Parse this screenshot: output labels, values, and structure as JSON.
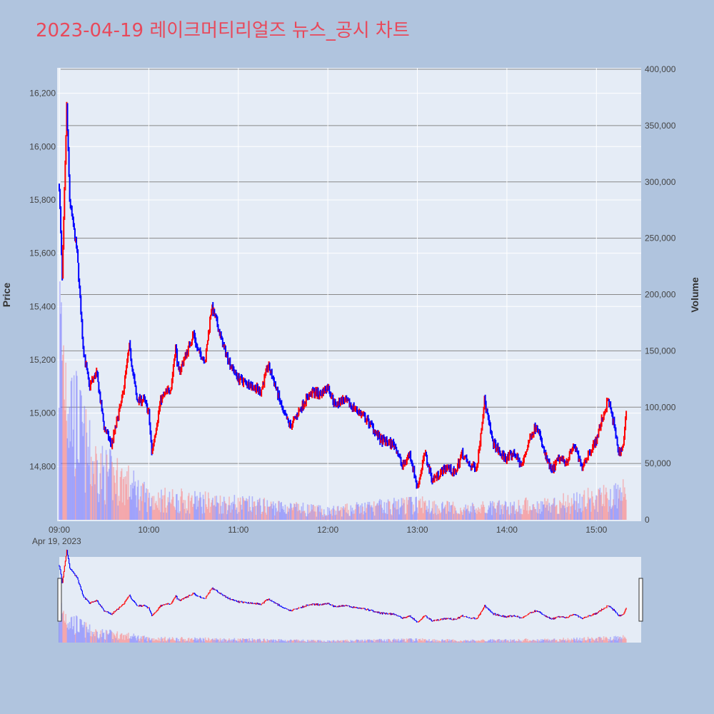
{
  "title": "2023-04-19 레이크머티리얼즈 뉴스_공시 차트",
  "colors": {
    "up": "#ff0000",
    "down": "#0000ff",
    "page_bg": "#b0c4de",
    "plot_bg": "#e5ecf6",
    "title": "#e8495b"
  },
  "chart_data": {
    "type": "candlestick",
    "xlabel": "",
    "date_label": "Apr 19, 2023",
    "x_ticks": [
      "09:00",
      "10:00",
      "11:00",
      "12:00",
      "13:00",
      "14:00",
      "15:00"
    ],
    "x_range": [
      "09:00",
      "15:30"
    ],
    "y_left": {
      "label": "Price",
      "range": [
        14600,
        16290
      ],
      "ticks": [
        "14,800",
        "15,000",
        "15,200",
        "15,400",
        "15,600",
        "15,800",
        "16,000",
        "16,200"
      ]
    },
    "y_right": {
      "label": "Volume",
      "range": [
        0,
        400000
      ],
      "ticks": [
        "0",
        "50,000",
        "100,000",
        "150,000",
        "200,000",
        "250,000",
        "300,000",
        "350,000",
        "400,000"
      ]
    },
    "price_keypoints": [
      [
        "09:00",
        15850
      ],
      [
        "09:02",
        15500
      ],
      [
        "09:05",
        16150
      ],
      [
        "09:07",
        15800
      ],
      [
        "09:12",
        15600
      ],
      [
        "09:16",
        15250
      ],
      [
        "09:20",
        15100
      ],
      [
        "09:25",
        15150
      ],
      [
        "09:30",
        14950
      ],
      [
        "09:35",
        14880
      ],
      [
        "09:42",
        15050
      ],
      [
        "09:47",
        15250
      ],
      [
        "09:52",
        15050
      ],
      [
        "09:57",
        15050
      ],
      [
        "10:00",
        15000
      ],
      [
        "10:02",
        14850
      ],
      [
        "10:08",
        15050
      ],
      [
        "10:15",
        15100
      ],
      [
        "10:18",
        15250
      ],
      [
        "10:20",
        15150
      ],
      [
        "10:27",
        15250
      ],
      [
        "10:30",
        15300
      ],
      [
        "10:33",
        15230
      ],
      [
        "10:38",
        15200
      ],
      [
        "10:42",
        15400
      ],
      [
        "10:45",
        15350
      ],
      [
        "10:50",
        15250
      ],
      [
        "10:55",
        15180
      ],
      [
        "11:00",
        15130
      ],
      [
        "11:10",
        15100
      ],
      [
        "11:15",
        15080
      ],
      [
        "11:20",
        15180
      ],
      [
        "11:25",
        15100
      ],
      [
        "11:30",
        15000
      ],
      [
        "11:35",
        14950
      ],
      [
        "11:40",
        15000
      ],
      [
        "11:45",
        15050
      ],
      [
        "11:50",
        15080
      ],
      [
        "11:55",
        15070
      ],
      [
        "12:00",
        15100
      ],
      [
        "12:05",
        15030
      ],
      [
        "12:10",
        15050
      ],
      [
        "12:20",
        15010
      ],
      [
        "12:30",
        14950
      ],
      [
        "12:35",
        14900
      ],
      [
        "12:45",
        14880
      ],
      [
        "12:50",
        14800
      ],
      [
        "12:55",
        14850
      ],
      [
        "13:00",
        14720
      ],
      [
        "13:05",
        14850
      ],
      [
        "13:10",
        14750
      ],
      [
        "13:20",
        14800
      ],
      [
        "13:25",
        14770
      ],
      [
        "13:30",
        14850
      ],
      [
        "13:35",
        14800
      ],
      [
        "13:40",
        14800
      ],
      [
        "13:45",
        15050
      ],
      [
        "13:50",
        14900
      ],
      [
        "13:55",
        14850
      ],
      [
        "14:00",
        14830
      ],
      [
        "14:05",
        14850
      ],
      [
        "14:10",
        14800
      ],
      [
        "14:15",
        14900
      ],
      [
        "14:20",
        14960
      ],
      [
        "14:25",
        14850
      ],
      [
        "14:30",
        14780
      ],
      [
        "14:35",
        14830
      ],
      [
        "14:40",
        14820
      ],
      [
        "14:45",
        14880
      ],
      [
        "14:50",
        14800
      ],
      [
        "14:55",
        14850
      ],
      [
        "15:00",
        14900
      ],
      [
        "15:05",
        15000
      ],
      [
        "15:08",
        15050
      ],
      [
        "15:12",
        14950
      ],
      [
        "15:15",
        14850
      ],
      [
        "15:18",
        14880
      ],
      [
        "15:20",
        15000
      ]
    ],
    "volume_keypoints": [
      [
        "09:00",
        180000
      ],
      [
        "09:05",
        140000
      ],
      [
        "09:10",
        100000
      ],
      [
        "09:15",
        80000
      ],
      [
        "09:20",
        60000
      ],
      [
        "09:30",
        45000
      ],
      [
        "09:45",
        35000
      ],
      [
        "10:00",
        20000
      ],
      [
        "10:30",
        18000
      ],
      [
        "11:00",
        15000
      ],
      [
        "11:30",
        12000
      ],
      [
        "12:00",
        8000
      ],
      [
        "12:30",
        12000
      ],
      [
        "13:00",
        15000
      ],
      [
        "13:30",
        10000
      ],
      [
        "14:00",
        12000
      ],
      [
        "14:30",
        15000
      ],
      [
        "15:00",
        20000
      ],
      [
        "15:20",
        25000
      ]
    ]
  }
}
